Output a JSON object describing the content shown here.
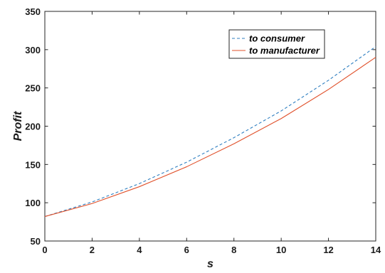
{
  "chart_data": {
    "type": "line",
    "title": "",
    "xlabel": "s",
    "ylabel": "Profit",
    "xlim": [
      0,
      14
    ],
    "ylim": [
      50,
      350
    ],
    "xticks": [
      0,
      2,
      4,
      6,
      8,
      10,
      12,
      14
    ],
    "yticks": [
      50,
      100,
      150,
      200,
      250,
      300,
      350
    ],
    "grid": false,
    "legend_position": "top-right",
    "x": [
      0,
      2,
      4,
      6,
      8,
      10,
      12,
      14
    ],
    "series": [
      {
        "name": "to consumer",
        "color": "#2f7fc1",
        "line_style": "dashed",
        "values": [
          82,
          101,
          125,
          153,
          185,
          220,
          260,
          304
        ]
      },
      {
        "name": "to manufacturer",
        "color": "#e0502a",
        "line_style": "solid",
        "values": [
          82,
          99,
          121,
          147,
          177,
          210,
          248,
          290
        ]
      }
    ]
  }
}
